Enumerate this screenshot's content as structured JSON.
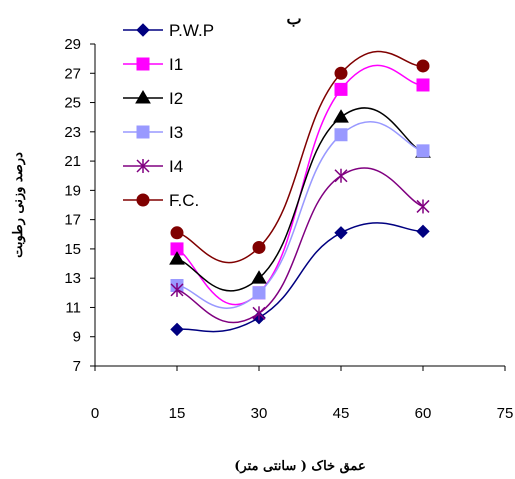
{
  "chart_data": {
    "type": "line",
    "panel_label": "ب",
    "xlabel": "عمق خاک ( سانتی متر)",
    "ylabel": "درصد وزنی رطوبت",
    "xlim": [
      0,
      75
    ],
    "ylim": [
      7,
      29
    ],
    "x_ticks": [
      0,
      15,
      30,
      45,
      60,
      75
    ],
    "y_ticks": [
      7,
      9,
      11,
      13,
      15,
      17,
      19,
      21,
      23,
      25,
      27,
      29
    ],
    "grid": false,
    "legend_position": "top-left",
    "line_style": "smoothed",
    "x": [
      15,
      30,
      45,
      60
    ],
    "series": [
      {
        "name": "P.W.P",
        "values": [
          9.5,
          10.3,
          16.1,
          16.2
        ],
        "color": "#000080",
        "marker": "diamond"
      },
      {
        "name": "I1",
        "values": [
          15.0,
          12.0,
          25.9,
          26.2
        ],
        "color": "#ff00ff",
        "marker": "square"
      },
      {
        "name": "I2",
        "values": [
          14.3,
          13.0,
          24.0,
          21.6
        ],
        "color": "#000000",
        "marker": "triangle"
      },
      {
        "name": "I3",
        "values": [
          12.5,
          12.0,
          22.8,
          21.7
        ],
        "color": "#9999ff",
        "marker": "square"
      },
      {
        "name": "I4",
        "values": [
          12.2,
          10.6,
          20.0,
          17.9
        ],
        "color": "#800080",
        "marker": "star"
      },
      {
        "name": "F.C.",
        "values": [
          16.1,
          15.1,
          27.0,
          27.5
        ],
        "color": "#800000",
        "marker": "circle"
      }
    ]
  }
}
